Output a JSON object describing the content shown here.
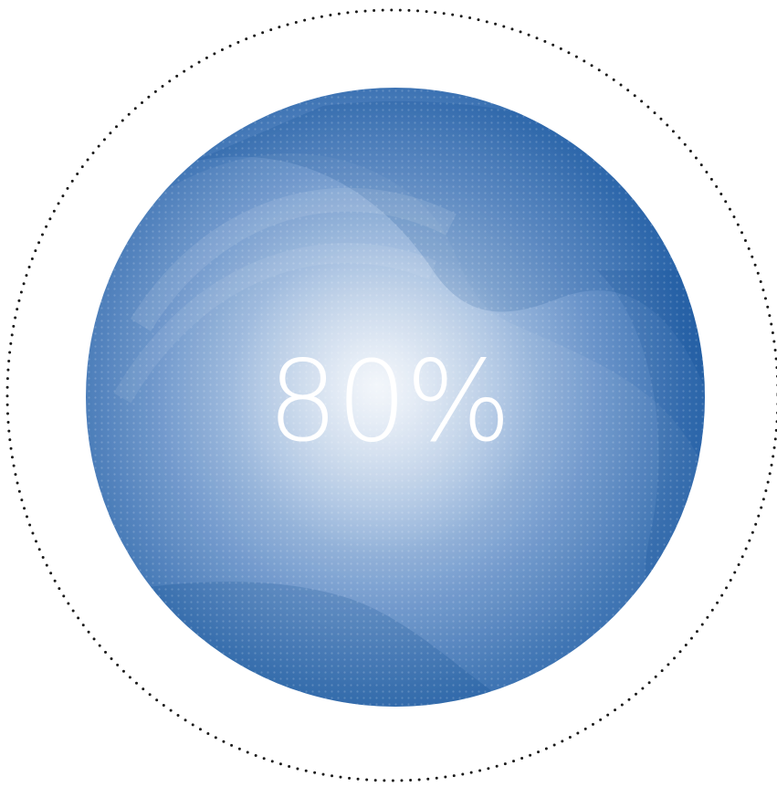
{
  "progress": {
    "label": "80%",
    "fraction": 0.8
  },
  "colors": {
    "orb_edge": "#1563a9",
    "orb_center": "#e4ecf6",
    "ring_dots": "#1a1a1a",
    "label": "#ffffff",
    "background": "#ffffff"
  }
}
